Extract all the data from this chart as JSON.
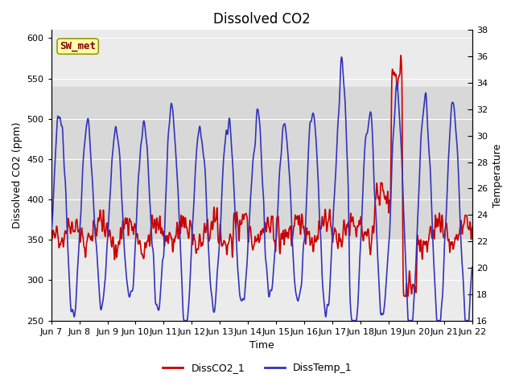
{
  "title": "Dissolved CO2",
  "xlabel": "Time",
  "ylabel_left": "Dissolved CO2 (ppm)",
  "ylabel_right": "Temperature",
  "label_box": "SW_met",
  "legend": [
    "DissCO2_1",
    "DissTemp_1"
  ],
  "ylim_left": [
    250,
    610
  ],
  "ylim_right": [
    16,
    38
  ],
  "yticks_left": [
    250,
    300,
    350,
    400,
    450,
    500,
    550,
    600
  ],
  "yticks_right": [
    16,
    18,
    20,
    22,
    24,
    26,
    28,
    30,
    32,
    34,
    36,
    38
  ],
  "xtick_labels": [
    "Jun 7",
    "Jun 8",
    "Jun 9",
    "Jun 10",
    "Jun 11",
    "Jun 12",
    "Jun 13",
    "Jun 14",
    "Jun 15",
    "Jun 16",
    "Jun 17",
    "Jun 18",
    "Jun 19",
    "Jun 20",
    "Jun 21",
    "Jun 22"
  ],
  "shaded_band": [
    350,
    540
  ],
  "co2_color": "#cc0000",
  "temp_color": "#3333bb",
  "background_color": "#ffffff",
  "plot_bg_color": "#ebebeb",
  "label_box_color": "#ffffaa",
  "label_box_edge": "#999900",
  "label_text_color": "#880000",
  "grid_color": "#ffffff",
  "linewidth": 1.2,
  "title_fontsize": 12,
  "axis_label_fontsize": 9,
  "tick_fontsize": 8,
  "legend_fontsize": 9
}
